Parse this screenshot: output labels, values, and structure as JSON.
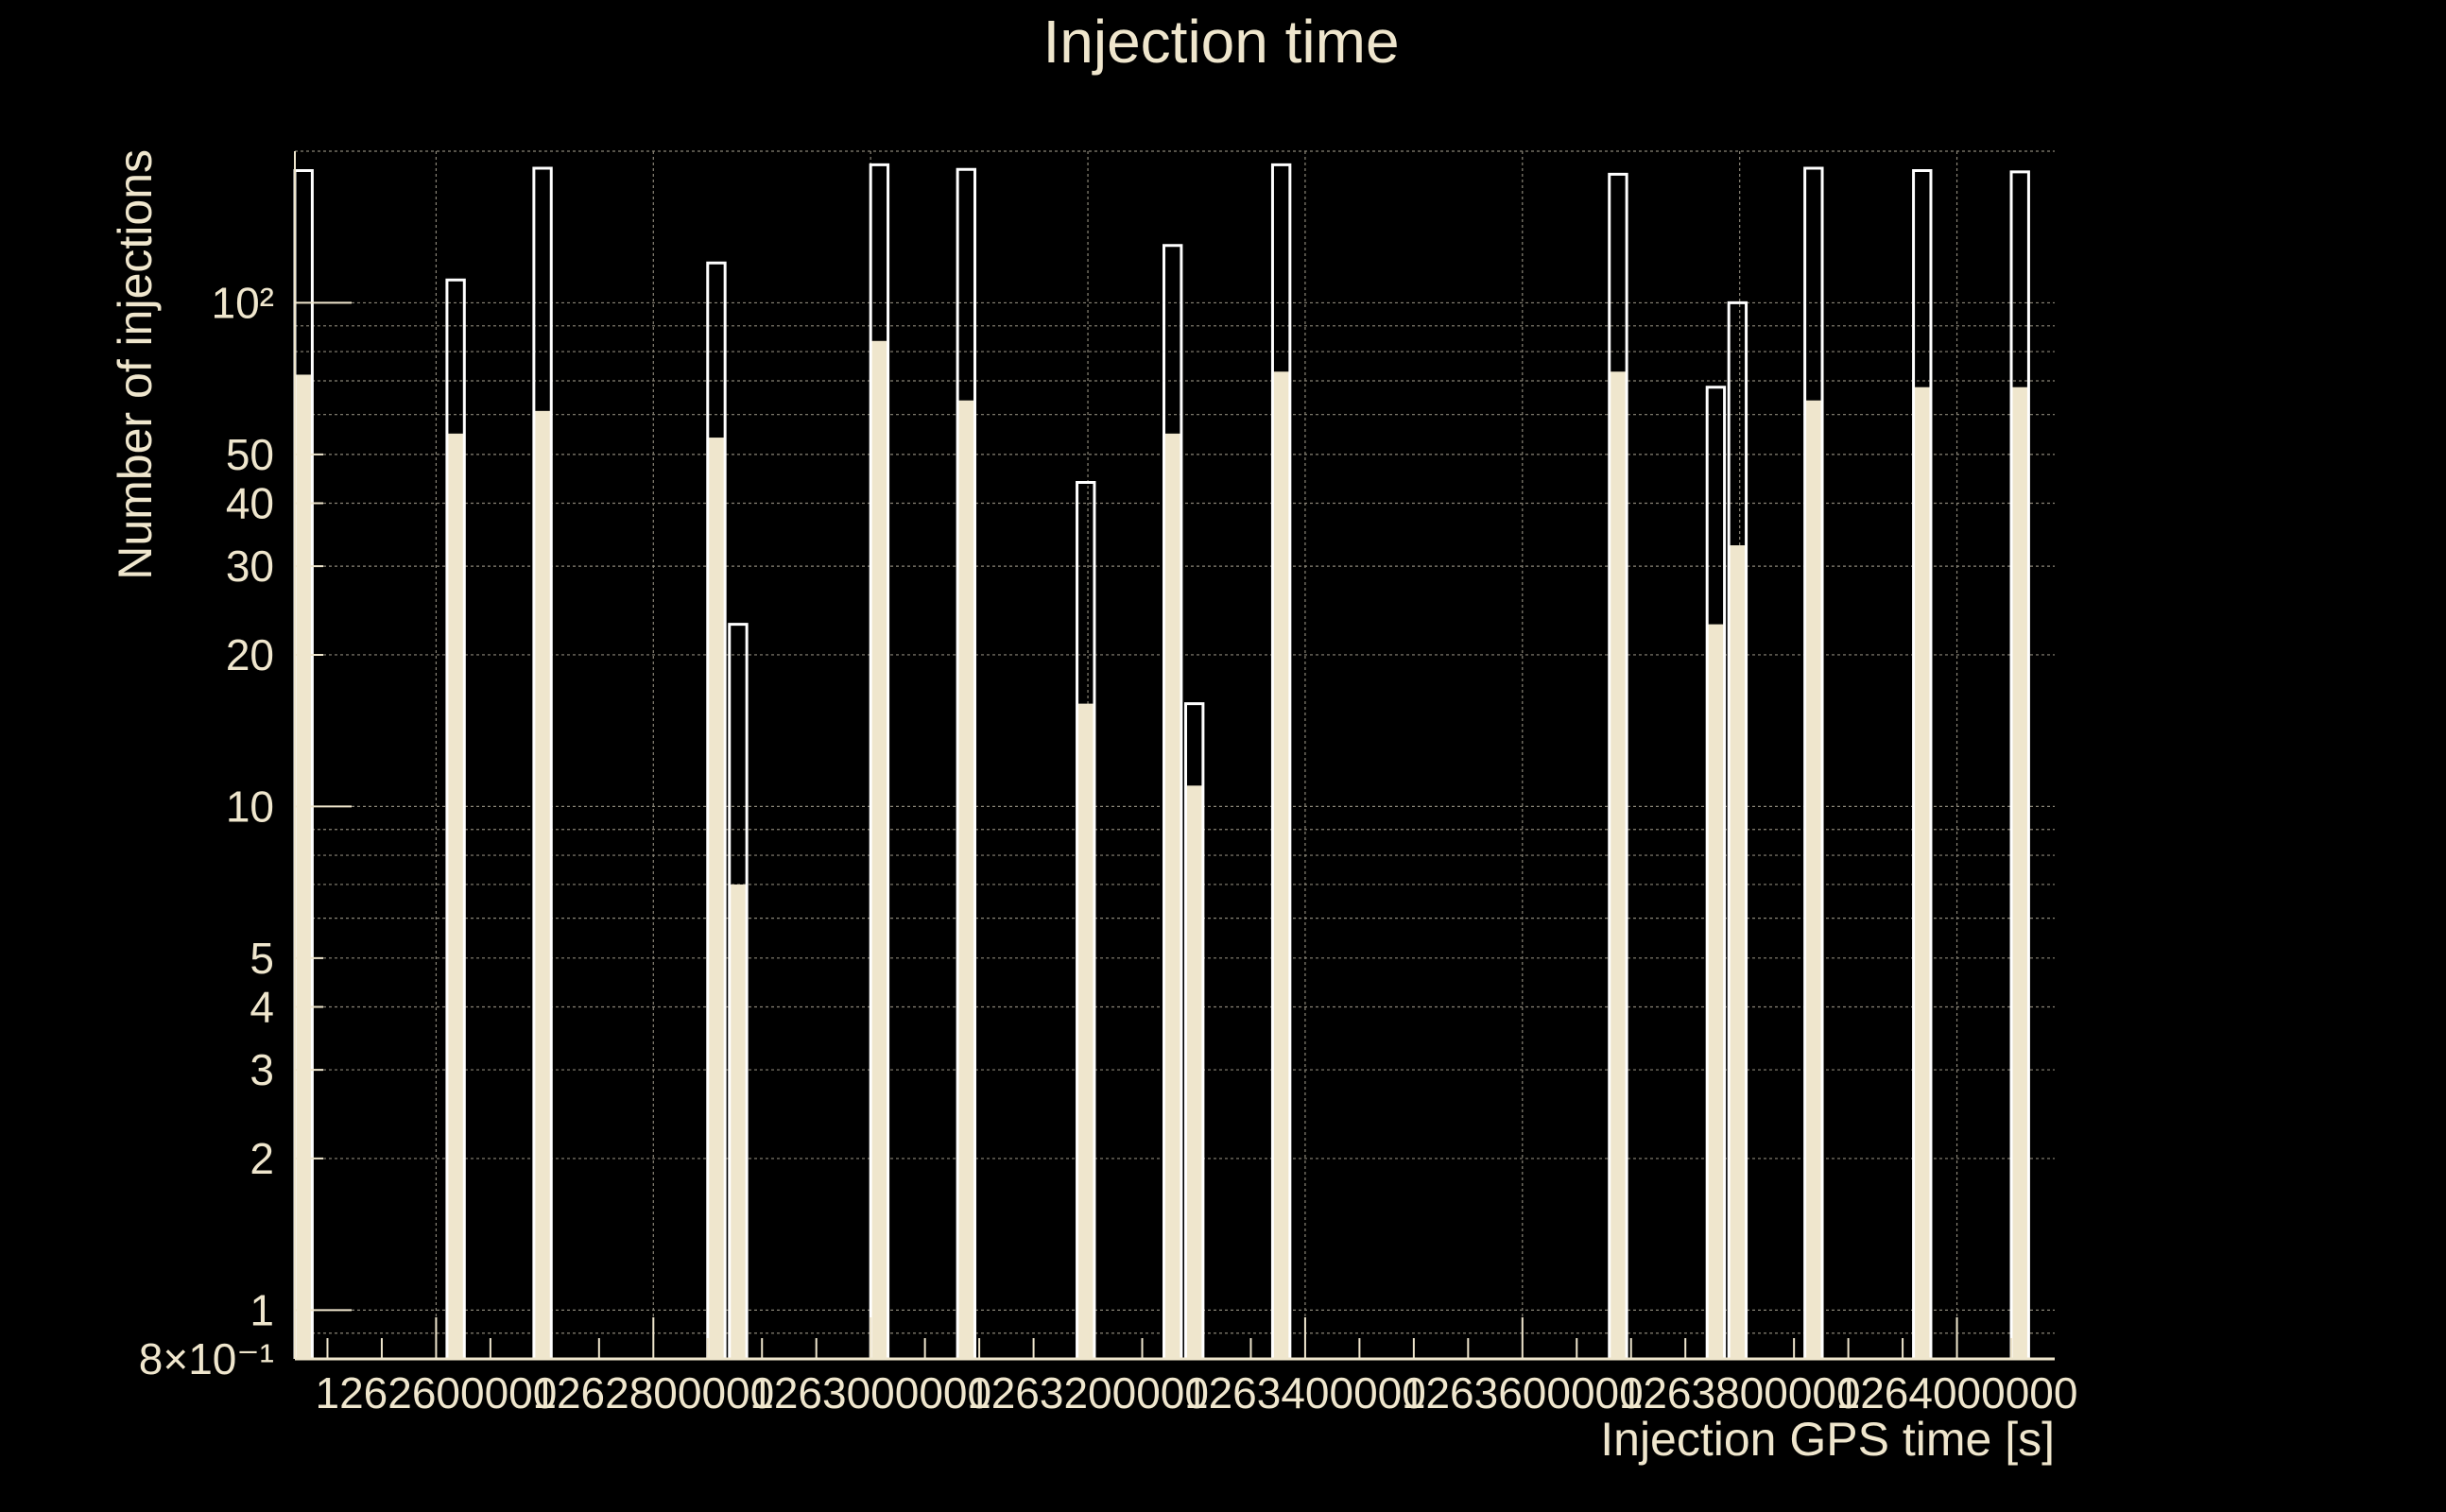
{
  "colors": {
    "background": "#000000",
    "foreground": "#efe6cd",
    "grid": "#8a8577",
    "fill": "#efe6cd",
    "outline": "#ffffff"
  },
  "chart_data": {
    "type": "bar",
    "title": "Injection time",
    "xlabel": "Injection GPS time [s]",
    "ylabel": "Number of injections",
    "yscale": "log",
    "xlim": [
      1262470000,
      1264090000
    ],
    "ylim": [
      0.8,
      200
    ],
    "grid": true,
    "xtick_labels": [
      "1262600000",
      "1262800000",
      "1263000000",
      "1263200000",
      "1263400000",
      "1263600000",
      "1263800000",
      "1264000000"
    ],
    "ytick_labels": [
      "8×10⁻¹",
      "1",
      "2",
      "3",
      "4",
      "5",
      "10",
      "20",
      "30",
      "40",
      "50",
      "10²"
    ],
    "ytick_values": [
      0.8,
      1,
      2,
      3,
      4,
      5,
      10,
      20,
      30,
      40,
      50,
      100
    ],
    "bin_width": 16000,
    "series": [
      {
        "name": "",
        "style": "outline",
        "bins": [
          {
            "x": 1262470000,
            "value": 183
          },
          {
            "x": 1262610000,
            "value": 111
          },
          {
            "x": 1262690000,
            "value": 185
          },
          {
            "x": 1262850000,
            "value": 120
          },
          {
            "x": 1262870000,
            "value": 23
          },
          {
            "x": 1263000000,
            "value": 188
          },
          {
            "x": 1263080000,
            "value": 184
          },
          {
            "x": 1263190000,
            "value": 44
          },
          {
            "x": 1263270000,
            "value": 130
          },
          {
            "x": 1263290000,
            "value": 16
          },
          {
            "x": 1263370000,
            "value": 188
          },
          {
            "x": 1263680000,
            "value": 180
          },
          {
            "x": 1263770000,
            "value": 68
          },
          {
            "x": 1263790000,
            "value": 100
          },
          {
            "x": 1263860000,
            "value": 185
          },
          {
            "x": 1263960000,
            "value": 183
          },
          {
            "x": 1264050000,
            "value": 182
          }
        ]
      },
      {
        "name": "",
        "style": "filled",
        "bins": [
          {
            "x": 1262470000,
            "value": 72
          },
          {
            "x": 1262610000,
            "value": 55
          },
          {
            "x": 1262690000,
            "value": 61
          },
          {
            "x": 1262850000,
            "value": 54
          },
          {
            "x": 1262870000,
            "value": 7
          },
          {
            "x": 1263000000,
            "value": 84
          },
          {
            "x": 1263080000,
            "value": 64
          },
          {
            "x": 1263190000,
            "value": 16
          },
          {
            "x": 1263270000,
            "value": 55
          },
          {
            "x": 1263290000,
            "value": 11
          },
          {
            "x": 1263370000,
            "value": 73
          },
          {
            "x": 1263680000,
            "value": 73
          },
          {
            "x": 1263770000,
            "value": 23
          },
          {
            "x": 1263790000,
            "value": 33
          },
          {
            "x": 1263860000,
            "value": 64
          },
          {
            "x": 1263960000,
            "value": 68
          },
          {
            "x": 1264050000,
            "value": 68
          }
        ]
      }
    ]
  }
}
